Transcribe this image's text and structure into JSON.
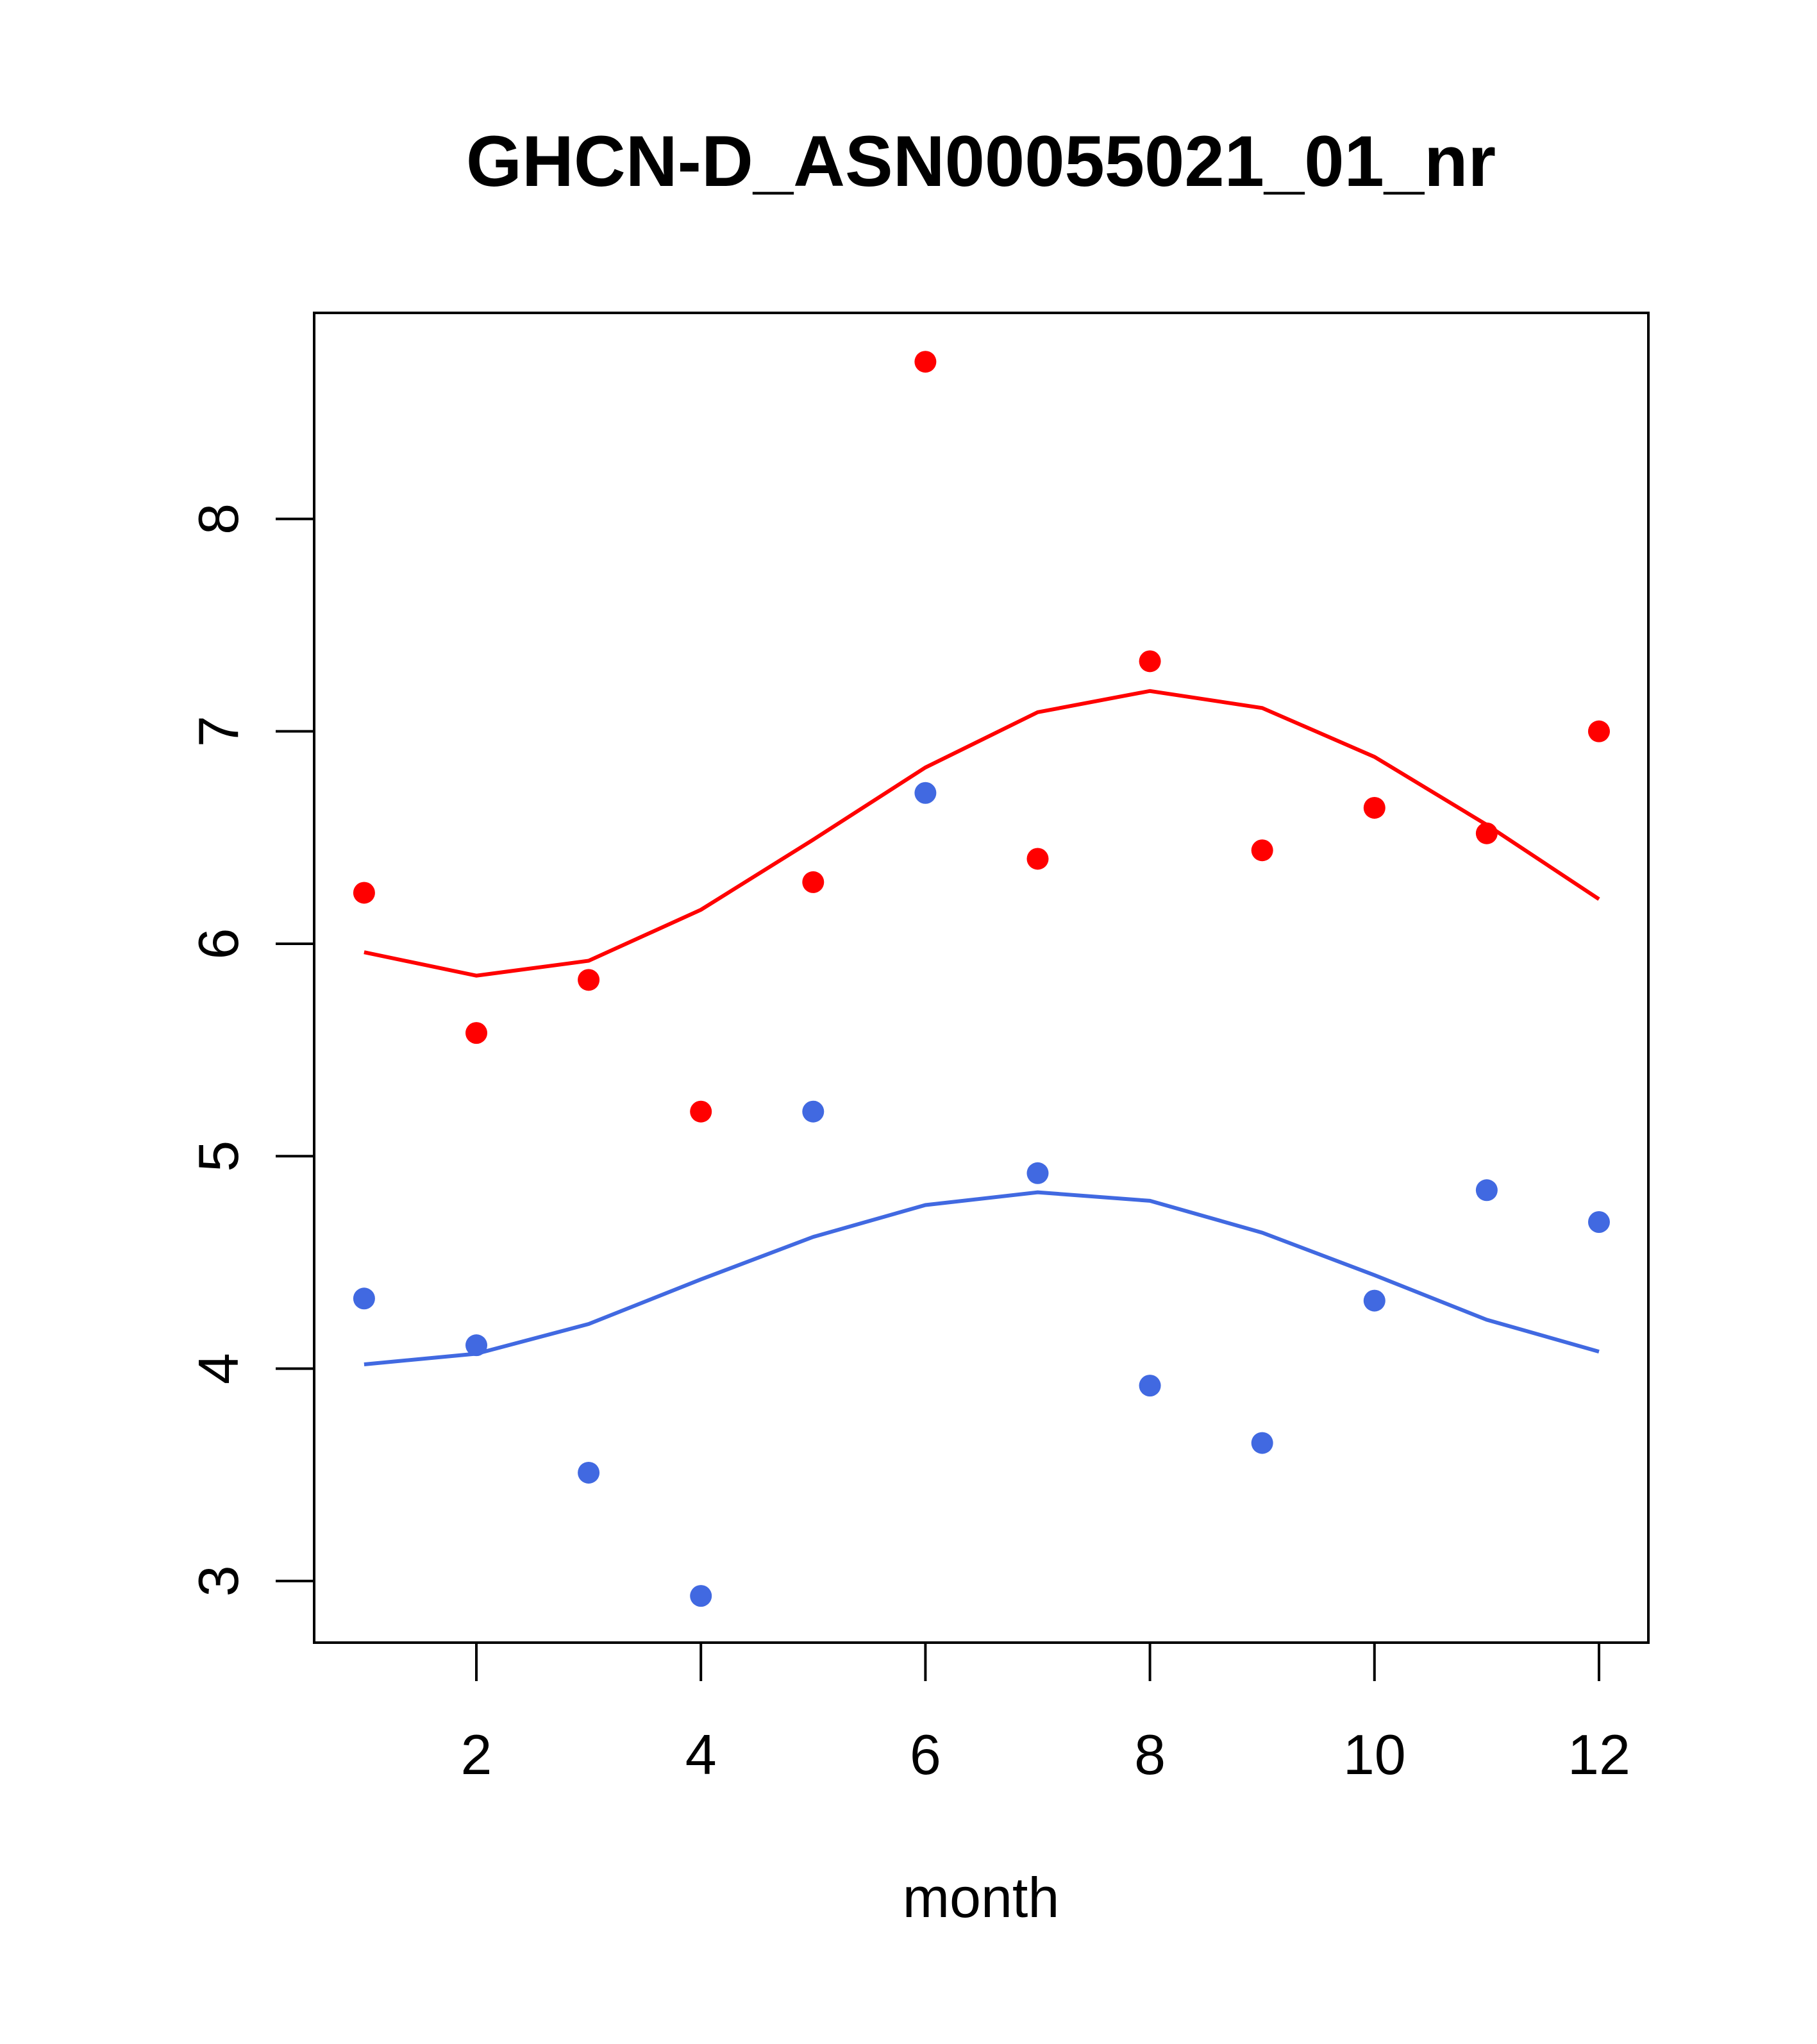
{
  "chart_data": {
    "type": "scatter",
    "title": "GHCN-D_ASN00055021_01_nr",
    "xlabel": "month",
    "ylabel": "",
    "xlim": [
      0.555,
      12.44
    ],
    "ylim": [
      2.71,
      8.97
    ],
    "x_ticks": [
      2,
      4,
      6,
      8,
      10,
      12
    ],
    "y_ticks": [
      3,
      4,
      5,
      6,
      7,
      8
    ],
    "grid": false,
    "x": [
      1,
      2,
      3,
      4,
      5,
      6,
      7,
      8,
      9,
      10,
      11,
      12
    ],
    "series": [
      {
        "name": "red points",
        "kind": "points",
        "color": "#ff0000",
        "values": [
          6.24,
          5.58,
          5.83,
          5.21,
          6.29,
          8.74,
          6.4,
          7.33,
          6.44,
          6.64,
          6.52,
          7.0
        ]
      },
      {
        "name": "red line",
        "kind": "line",
        "color": "#ff0000",
        "values": [
          5.96,
          5.85,
          5.92,
          6.16,
          6.49,
          6.83,
          7.09,
          7.19,
          7.11,
          6.88,
          6.56,
          6.21
        ]
      },
      {
        "name": "blue points",
        "kind": "points",
        "color": "#4169e1",
        "values": [
          4.33,
          4.11,
          3.51,
          2.93,
          5.21,
          6.71,
          4.92,
          3.92,
          3.65,
          4.32,
          4.84,
          4.69
        ]
      },
      {
        "name": "blue line",
        "kind": "line",
        "color": "#4169e1",
        "values": [
          4.02,
          4.07,
          4.21,
          4.42,
          4.62,
          4.77,
          4.83,
          4.79,
          4.64,
          4.44,
          4.23,
          4.08
        ]
      }
    ]
  }
}
